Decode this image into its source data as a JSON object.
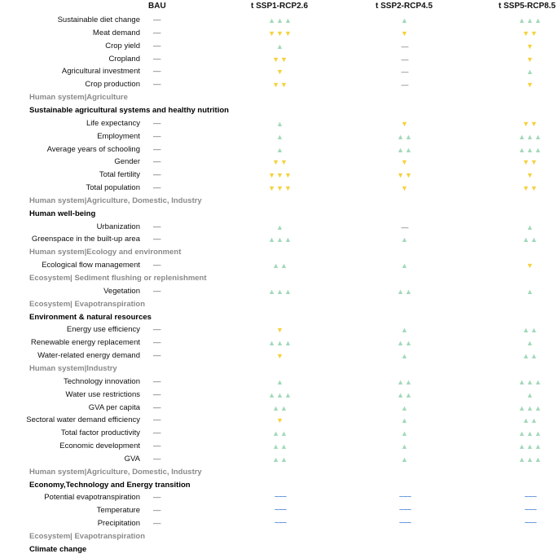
{
  "headers": {
    "bau": "BAU",
    "s1": "t SSP1-RCP2.6",
    "s2": "t SSP2-RCP4.5",
    "s3": "t SSP5-RCP8.5"
  },
  "rows": [
    {
      "type": "item",
      "label": "Sustainable diet change",
      "bau": "—",
      "s1": "▲▲▲",
      "s2": "▲",
      "s3": "▲▲▲"
    },
    {
      "type": "item",
      "label": "Meat demand",
      "bau": "—",
      "s1": "▼▼▼",
      "s2": "▼",
      "s3": "▼▼"
    },
    {
      "type": "item",
      "label": "Crop yield",
      "bau": "—",
      "s1": "▲",
      "s2": "—",
      "s3": "▼"
    },
    {
      "type": "item",
      "label": "Cropland",
      "bau": "—",
      "s1": "▼▼",
      "s2": "—",
      "s3": "▼"
    },
    {
      "type": "item",
      "label": "Agricultural investment",
      "bau": "—",
      "s1": "▼",
      "s2": "—",
      "s3": "▲"
    },
    {
      "type": "item",
      "label": "Crop production",
      "bau": "—",
      "s1": "▼▼",
      "s2": "—",
      "s3": "▼"
    },
    {
      "type": "sub",
      "label": "Human system|Agriculture"
    },
    {
      "type": "sec",
      "label": "Sustainable agricultural systems and healthy nutrition"
    },
    {
      "type": "item",
      "label": "Life expectancy",
      "bau": "—",
      "s1": "▲",
      "s2": "▼",
      "s3": "▼▼"
    },
    {
      "type": "item",
      "label": "Employment",
      "bau": "—",
      "s1": "▲",
      "s2": "▲▲",
      "s3": "▲▲▲"
    },
    {
      "type": "item",
      "label": "Average years of schooling",
      "bau": "—",
      "s1": "▲",
      "s2": "▲▲",
      "s3": "▲▲▲"
    },
    {
      "type": "item",
      "label": "Gender",
      "bau": "—",
      "s1": "▼▼",
      "s2": "▼",
      "s3": "▼▼"
    },
    {
      "type": "item",
      "label": "Total fertility",
      "bau": "—",
      "s1": "▼▼▼",
      "s2": "▼▼",
      "s3": "▼"
    },
    {
      "type": "item",
      "label": "Total population",
      "bau": "—",
      "s1": "▼▼▼",
      "s2": "▼",
      "s3": "▼▼"
    },
    {
      "type": "sub",
      "label": "Human system|Agriculture, Domestic, Industry"
    },
    {
      "type": "sec",
      "label": "Human well-being"
    },
    {
      "type": "item",
      "label": "Urbanization",
      "bau": "—",
      "s1": "▲",
      "s2": "—",
      "s3": "▲"
    },
    {
      "type": "item",
      "label": "Greenspace in the built-up area",
      "bau": "—",
      "s1": "▲▲▲",
      "s2": "▲",
      "s3": "▲▲"
    },
    {
      "type": "sub",
      "label": "Human system|Ecology and environment"
    },
    {
      "type": "item",
      "label": "Ecological flow management",
      "bau": "—",
      "s1": "▲▲",
      "s2": "▲",
      "s3": "▼"
    },
    {
      "type": "sub",
      "label": "Ecosystem| Sediment flushing or replenishment"
    },
    {
      "type": "item",
      "label": "Vegetation",
      "bau": "—",
      "s1": "▲▲▲",
      "s2": "▲▲",
      "s3": "▲"
    },
    {
      "type": "sub",
      "label": "Ecosystem| Evapotranspiration"
    },
    {
      "type": "sec",
      "label": "Environment & natural resources"
    },
    {
      "type": "item",
      "label": "Energy use efficiency",
      "bau": "—",
      "s1": "▼",
      "s2": "▲",
      "s3": "▲▲"
    },
    {
      "type": "item",
      "label": "Renewable energy replacement",
      "bau": "—",
      "s1": "▲▲▲",
      "s2": "▲▲",
      "s3": "▲"
    },
    {
      "type": "item",
      "label": "Water-related energy demand",
      "bau": "—",
      "s1": "▼",
      "s2": "▲",
      "s3": "▲▲"
    },
    {
      "type": "sub",
      "label": "Human system|Industry"
    },
    {
      "type": "item",
      "label": "Technology innovation",
      "bau": "—",
      "s1": "▲",
      "s2": "▲▲",
      "s3": "▲▲▲"
    },
    {
      "type": "item",
      "label": "Water use restrictions",
      "bau": "—",
      "s1": "▲▲▲",
      "s2": "▲▲",
      "s3": "▲"
    },
    {
      "type": "item",
      "label": "GVA per capita",
      "bau": "—",
      "s1": "▲▲",
      "s2": "▲",
      "s3": "▲▲▲"
    },
    {
      "type": "item",
      "label": "Sectoral water demand efficiency",
      "bau": "—",
      "s1": "▼",
      "s2": "▲",
      "s3": "▲▲"
    },
    {
      "type": "item",
      "label": "Total factor productivity",
      "bau": "—",
      "s1": "▲▲",
      "s2": "▲",
      "s3": "▲▲▲"
    },
    {
      "type": "item",
      "label": "Economic development",
      "bau": "—",
      "s1": "▲▲",
      "s2": "▲",
      "s3": "▲▲▲"
    },
    {
      "type": "item",
      "label": "GVA",
      "bau": "—",
      "s1": "▲▲",
      "s2": "▲",
      "s3": "▲▲▲"
    },
    {
      "type": "sub",
      "label": "Human system|Agriculture, Domestic, Industry"
    },
    {
      "type": "sec",
      "label": "Economy,Technology and Energy transition"
    },
    {
      "type": "item",
      "label": "Potential evapotranspiration",
      "bau": "—",
      "s1": "~~~",
      "s2": "~~~",
      "s3": "~~~"
    },
    {
      "type": "item",
      "label": "Temperature",
      "bau": "—",
      "s1": "~~~",
      "s2": "~~~",
      "s3": "~~~"
    },
    {
      "type": "item",
      "label": "Precipitation",
      "bau": "—",
      "s1": "~~~",
      "s2": "~~~",
      "s3": "~~~"
    },
    {
      "type": "sub",
      "label": "Ecosystem| Evapotranspiration"
    },
    {
      "type": "sec",
      "label": "Climate change"
    }
  ]
}
